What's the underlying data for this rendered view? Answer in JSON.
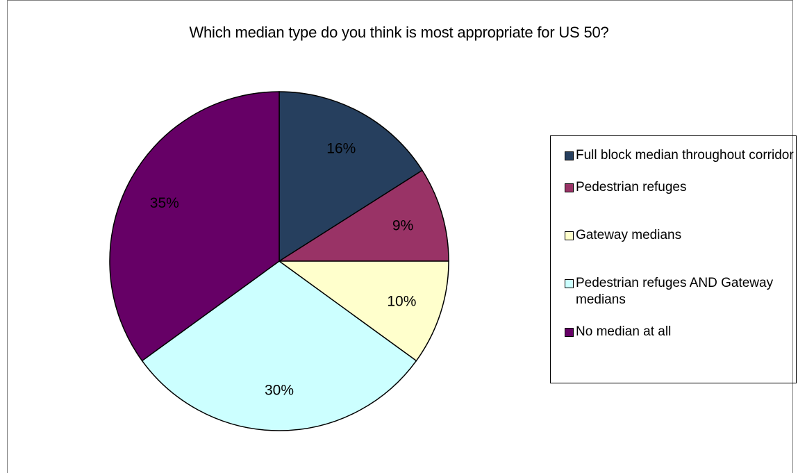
{
  "chart_data": {
    "type": "pie",
    "title": "Which median type do you think is most appropriate for US 50?",
    "legend_position": "right",
    "slices": [
      {
        "label": "Full block median throughout corridor",
        "value": 16,
        "display": "16%",
        "color": "#263f5e"
      },
      {
        "label": "Pedestrian refuges",
        "value": 9,
        "display": "9%",
        "color": "#993366"
      },
      {
        "label": "Gateway medians",
        "value": 10,
        "display": "10%",
        "color": "#ffffcc"
      },
      {
        "label": "Pedestrian refuges AND Gateway medians",
        "value": 30,
        "display": "30%",
        "color": "#ccffff"
      },
      {
        "label": "No median at all",
        "value": 35,
        "display": "35%",
        "color": "#660066"
      }
    ]
  }
}
